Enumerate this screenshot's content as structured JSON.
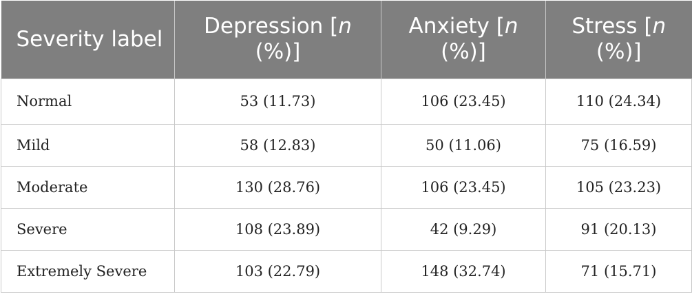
{
  "table": {
    "headers": [
      {
        "text": "Severity label",
        "emph": ""
      },
      {
        "text": "Depression [",
        "emph": "n",
        "after": " (%)]"
      },
      {
        "text": "Anxiety [",
        "emph": "n",
        "after": " (%)]"
      },
      {
        "text": "Stress [",
        "emph": "n",
        "after": " (%)]"
      }
    ],
    "rows": [
      {
        "label": "Normal",
        "depression": "53 (11.73)",
        "anxiety": "106 (23.45)",
        "stress": "110 (24.34)"
      },
      {
        "label": "Mild",
        "depression": "58 (12.83)",
        "anxiety": "50 (11.06)",
        "stress": "75 (16.59)"
      },
      {
        "label": "Moderate",
        "depression": "130 (28.76)",
        "anxiety": "106 (23.45)",
        "stress": "105 (23.23)"
      },
      {
        "label": "Severe",
        "depression": "108 (23.89)",
        "anxiety": "42 (9.29)",
        "stress": "91 (20.13)"
      },
      {
        "label": "Extremely Severe",
        "depression": "103 (22.79)",
        "anxiety": "148 (32.74)",
        "stress": "71 (15.71)"
      }
    ]
  },
  "colors": {
    "header_bg": "#7f7f7f",
    "header_text": "#ffffff",
    "border": "#c8c8c8",
    "body_text": "#222222"
  }
}
